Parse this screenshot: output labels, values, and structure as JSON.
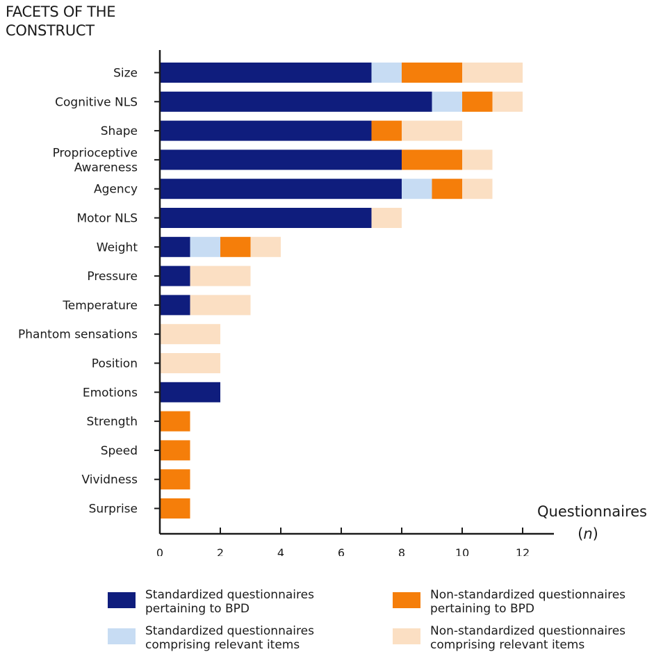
{
  "title_lines": [
    "FACETS OF THE",
    "CONSTRUCT"
  ],
  "colors": {
    "standardized_bpd": "#0f1d7d",
    "standardized_items": "#c7dcf3",
    "nonstandardized_bpd": "#f57e0a",
    "nonstandardized_items": "#fbdfc3",
    "axis": "#1a1a1a"
  },
  "legend": [
    {
      "key": "standardized_bpd",
      "lines": [
        "Standardized questionnaires",
        "pertaining to BPD"
      ]
    },
    {
      "key": "nonstandardized_bpd",
      "lines": [
        "Non-standardized questionnaires",
        "pertaining to BPD"
      ]
    },
    {
      "key": "standardized_items",
      "lines": [
        "Standardized questionnaires",
        "comprising relevant items"
      ]
    },
    {
      "key": "nonstandardized_items",
      "lines": [
        "Non-standardized questionnaires",
        "comprising relevant items"
      ]
    }
  ],
  "chart_data": {
    "type": "bar",
    "orientation": "horizontal",
    "stacked": true,
    "ylabel": "FACETS OF THE CONSTRUCT",
    "xlabel_lines": [
      "Questionnaires",
      "(n)"
    ],
    "xlim": [
      0,
      13
    ],
    "xticks": [
      0,
      2,
      4,
      6,
      8,
      10,
      12
    ],
    "categories": [
      {
        "lines": [
          "Size"
        ]
      },
      {
        "lines": [
          "Cognitive NLS"
        ]
      },
      {
        "lines": [
          "Shape"
        ]
      },
      {
        "lines": [
          "Proprioceptive",
          "Awareness"
        ]
      },
      {
        "lines": [
          "Agency"
        ]
      },
      {
        "lines": [
          "Motor NLS"
        ]
      },
      {
        "lines": [
          "Weight"
        ]
      },
      {
        "lines": [
          "Pressure"
        ]
      },
      {
        "lines": [
          "Temperature"
        ]
      },
      {
        "lines": [
          "Phantom sensations"
        ]
      },
      {
        "lines": [
          "Position"
        ]
      },
      {
        "lines": [
          "Emotions"
        ]
      },
      {
        "lines": [
          "Strength"
        ]
      },
      {
        "lines": [
          "Speed"
        ]
      },
      {
        "lines": [
          "Vividness"
        ]
      },
      {
        "lines": [
          "Surprise"
        ]
      }
    ],
    "series": [
      {
        "key": "standardized_bpd",
        "name": "Standardized questionnaires pertaining to BPD",
        "values": [
          7,
          9,
          7,
          8,
          8,
          7,
          1,
          1,
          1,
          0,
          0,
          2,
          0,
          0,
          0,
          0
        ]
      },
      {
        "key": "standardized_items",
        "name": "Standardized questionnaires comprising relevant items",
        "values": [
          1,
          1,
          0,
          0,
          1,
          0,
          1,
          0,
          0,
          0,
          0,
          0,
          0,
          0,
          0,
          0
        ]
      },
      {
        "key": "nonstandardized_bpd",
        "name": "Non-standardized questionnaires pertaining to BPD",
        "values": [
          2,
          1,
          1,
          2,
          1,
          0,
          1,
          0,
          0,
          0,
          0,
          0,
          1,
          1,
          1,
          1
        ]
      },
      {
        "key": "nonstandardized_items",
        "name": "Non-standardized questionnaires comprising relevant items",
        "values": [
          2,
          1,
          2,
          1,
          1,
          1,
          1,
          2,
          2,
          2,
          2,
          0,
          0,
          0,
          0,
          0
        ]
      }
    ]
  }
}
